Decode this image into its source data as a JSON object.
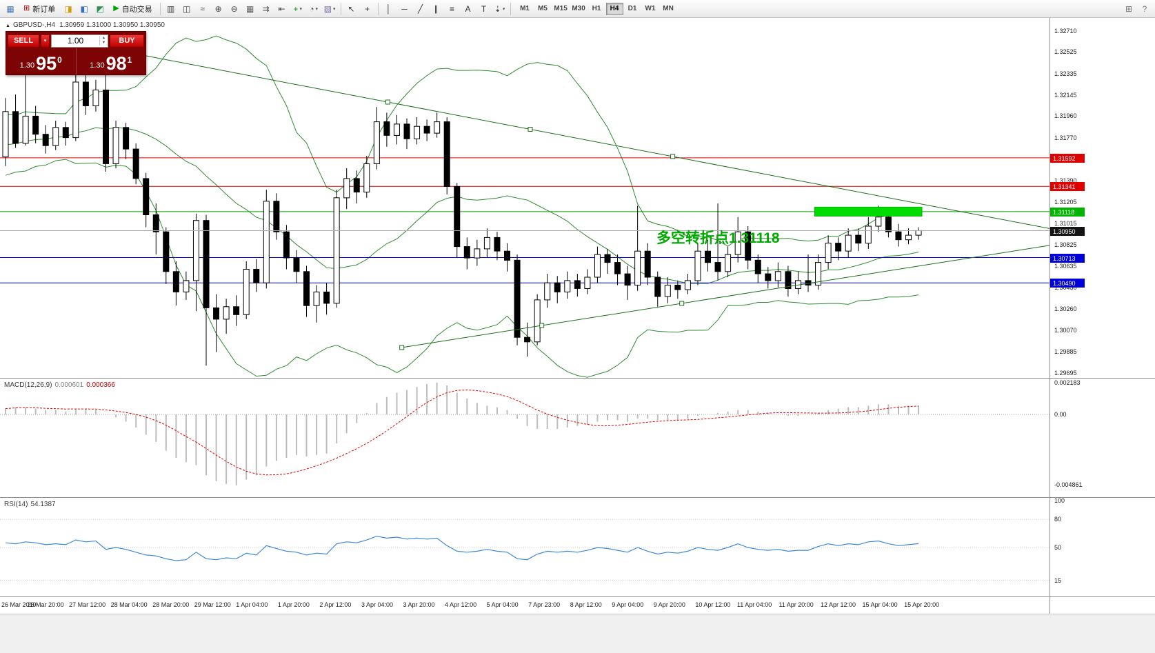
{
  "toolbar": {
    "left": [
      {
        "type": "icon",
        "name": "new-chart-icon",
        "glyph": "▦",
        "color": "#4a7ab5"
      },
      {
        "type": "button",
        "name": "new-order-button",
        "glyph": "⊞",
        "color": "#c00000",
        "label": "新订单"
      },
      {
        "type": "icon",
        "name": "profiles-icon",
        "glyph": "◨",
        "color": "#d89a00"
      },
      {
        "type": "icon",
        "name": "market-watch-icon",
        "glyph": "◧",
        "color": "#3c6ebf"
      },
      {
        "type": "icon",
        "name": "navigator-icon",
        "glyph": "◩",
        "color": "#2f8f4e"
      },
      {
        "type": "button",
        "name": "autotrading-button",
        "glyph": "▶",
        "color": "#00a000",
        "label": "自动交易"
      },
      {
        "type": "sep"
      },
      {
        "type": "icon",
        "name": "bar-chart-icon",
        "glyph": "▥",
        "color": "#444444"
      },
      {
        "type": "icon",
        "name": "candlestick-chart-icon",
        "glyph": "◫",
        "color": "#444444"
      },
      {
        "type": "icon",
        "name": "line-chart-icon",
        "glyph": "≈",
        "color": "#444444"
      },
      {
        "type": "icon",
        "name": "zoom-in-icon",
        "glyph": "⊕",
        "color": "#444444"
      },
      {
        "type": "icon",
        "name": "zoom-out-icon",
        "glyph": "⊖",
        "color": "#444444"
      },
      {
        "type": "icon",
        "name": "tile-windows-icon",
        "glyph": "▦",
        "color": "#666666"
      },
      {
        "type": "icon",
        "name": "auto-scroll-icon",
        "glyph": "⇉",
        "color": "#444444"
      },
      {
        "type": "icon",
        "name": "chart-shift-icon",
        "glyph": "⇤",
        "color": "#444444"
      },
      {
        "type": "icon",
        "name": "indicators-icon",
        "glyph": "+",
        "color": "#00a000",
        "dropdown": true
      },
      {
        "type": "icon",
        "name": "periods-icon",
        "glyph": "◔",
        "color": "#444444",
        "dropdown": true
      },
      {
        "type": "icon",
        "name": "templates-icon",
        "glyph": "▨",
        "color": "#7a6aa0",
        "dropdown": true
      },
      {
        "type": "sep"
      },
      {
        "type": "icon",
        "name": "cursor-icon",
        "glyph": "↖",
        "color": "#333333"
      },
      {
        "type": "icon",
        "name": "crosshair-icon",
        "glyph": "+",
        "color": "#333333"
      },
      {
        "type": "sep"
      },
      {
        "type": "icon",
        "name": "vertical-line-icon",
        "glyph": "│",
        "color": "#333333"
      },
      {
        "type": "icon",
        "name": "horizontal-line-icon",
        "glyph": "─",
        "color": "#333333"
      },
      {
        "type": "icon",
        "name": "trendline-icon",
        "glyph": "╱",
        "color": "#333333"
      },
      {
        "type": "icon",
        "name": "equidistant-channel-icon",
        "glyph": "∥",
        "color": "#333333"
      },
      {
        "type": "icon",
        "name": "fibonacci-icon",
        "glyph": "≡",
        "color": "#333333"
      },
      {
        "type": "icon",
        "name": "text-icon",
        "glyph": "A",
        "color": "#333333"
      },
      {
        "type": "icon",
        "name": "text-label-icon",
        "glyph": "T",
        "color": "#333333"
      },
      {
        "type": "icon",
        "name": "arrows-icon",
        "glyph": "⇣",
        "color": "#333333",
        "dropdown": true
      },
      {
        "type": "sep"
      }
    ],
    "timeframes": {
      "items": [
        "M1",
        "M5",
        "M15",
        "M30",
        "H1",
        "H4",
        "D1",
        "W1",
        "MN"
      ],
      "active": "H4"
    },
    "right": [
      {
        "type": "icon",
        "name": "new-window-icon",
        "glyph": "⊞",
        "color": "#777777"
      },
      {
        "type": "icon",
        "name": "help-icon",
        "glyph": "?",
        "color": "#777777"
      }
    ]
  },
  "chart": {
    "symbol_period": "GBPUSD-,H4",
    "ohlc_text": "1.30959 1.31000 1.30950 1.30950"
  },
  "one_click": {
    "sell_label": "SELL",
    "buy_label": "BUY",
    "volume": "1.00",
    "sell_price_prefix": "1.30",
    "sell_price_big": "95",
    "sell_price_sup": "0",
    "buy_price_prefix": "1.30",
    "buy_price_big": "98",
    "buy_price_sup": "1"
  },
  "annotation": {
    "text": "多空转折点1.31118",
    "color": "#00AA00"
  },
  "price_axis": {
    "ticks": [
      "1.32710",
      "1.32525",
      "1.32335",
      "1.32145",
      "1.31960",
      "1.31770",
      "1.31580",
      "1.31390",
      "1.31205",
      "1.31015",
      "1.30825",
      "1.30635",
      "1.30450",
      "1.30260",
      "1.30070",
      "1.29885",
      "1.29695"
    ],
    "badges": [
      {
        "text": "1.31592",
        "color": "#e00000"
      },
      {
        "text": "1.31341",
        "color": "#e00000"
      },
      {
        "text": "1.31118",
        "color": "#00b400"
      },
      {
        "text": "1.30950",
        "color": "#141414"
      },
      {
        "text": "1.30713",
        "color": "#0000d8"
      },
      {
        "text": "1.30490",
        "color": "#0000d8"
      }
    ]
  },
  "macd": {
    "label": "MACD(12,26,9)",
    "main_value": "0.000601",
    "signal_value": "0.000366",
    "axis": [
      {
        "text": "0.002183",
        "value": 0.002183
      },
      {
        "text": "0.00",
        "value": 0
      },
      {
        "text": "-0.004861",
        "value": -0.004861
      }
    ]
  },
  "rsi": {
    "label": "RSI(14)",
    "value": "54.1387",
    "axis": [
      {
        "text": "100",
        "value": 100
      },
      {
        "text": "80",
        "value": 80
      },
      {
        "text": "50",
        "value": 50
      },
      {
        "text": "15",
        "value": 15
      }
    ]
  },
  "date_axis": {
    "labels": [
      "26 Mar 2019",
      "26 Mar 20:00",
      "27 Mar 12:00",
      "28 Mar 04:00",
      "28 Mar 20:00",
      "29 Mar 12:00",
      "1 Apr 04:00",
      "1 Apr 20:00",
      "2 Apr 12:00",
      "3 Apr 04:00",
      "3 Apr 20:00",
      "4 Apr 12:00",
      "5 Apr 04:00",
      "7 Apr 23:00",
      "8 Apr 12:00",
      "9 Apr 04:00",
      "9 Apr 20:00",
      "10 Apr 12:00",
      "11 Apr 04:00",
      "11 Apr 20:00",
      "12 Apr 12:00",
      "15 Apr 04:00",
      "15 Apr 20:00"
    ]
  },
  "chart_data": {
    "type": "candlestick",
    "symbol": "GBPUSD-",
    "timeframe": "H4",
    "price_axis_range": {
      "top": 1.3271,
      "bottom": 1.29695
    },
    "bollinger": {
      "period": 20,
      "deviation": 2
    },
    "ohlc": [
      [
        1.316,
        1.3212,
        1.3152,
        1.32
      ],
      [
        1.32,
        1.3215,
        1.3168,
        1.3172
      ],
      [
        1.3172,
        1.3232,
        1.317,
        1.3196
      ],
      [
        1.3196,
        1.3205,
        1.3172,
        1.318
      ],
      [
        1.318,
        1.3188,
        1.3163,
        1.317
      ],
      [
        1.317,
        1.3192,
        1.3166,
        1.3186
      ],
      [
        1.3186,
        1.3191,
        1.317,
        1.3177
      ],
      [
        1.3177,
        1.3235,
        1.3174,
        1.3226
      ],
      [
        1.3226,
        1.3232,
        1.3197,
        1.3205
      ],
      [
        1.3205,
        1.3228,
        1.32,
        1.3219
      ],
      [
        1.3219,
        1.324,
        1.3147,
        1.3154
      ],
      [
        1.3154,
        1.3192,
        1.315,
        1.3186
      ],
      [
        1.3186,
        1.319,
        1.3158,
        1.3167
      ],
      [
        1.3167,
        1.3172,
        1.3136,
        1.3141
      ],
      [
        1.3141,
        1.3146,
        1.3098,
        1.3109
      ],
      [
        1.3109,
        1.3119,
        1.3074,
        1.3094
      ],
      [
        1.3094,
        1.3098,
        1.3048,
        1.3059
      ],
      [
        1.3059,
        1.3068,
        1.3029,
        1.3041
      ],
      [
        1.3041,
        1.3059,
        1.3034,
        1.3051
      ],
      [
        1.3051,
        1.311,
        1.3024,
        1.3104
      ],
      [
        1.3104,
        1.3109,
        1.2976,
        1.3027
      ],
      [
        1.3027,
        1.3039,
        1.2988,
        1.3017
      ],
      [
        1.3017,
        1.3035,
        1.3004,
        1.3028
      ],
      [
        1.3028,
        1.3038,
        1.3011,
        1.3021
      ],
      [
        1.3021,
        1.3068,
        1.3017,
        1.3061
      ],
      [
        1.3061,
        1.307,
        1.3041,
        1.3049
      ],
      [
        1.3049,
        1.3131,
        1.3044,
        1.3121
      ],
      [
        1.3121,
        1.3128,
        1.3087,
        1.3094
      ],
      [
        1.3094,
        1.31,
        1.3061,
        1.3071
      ],
      [
        1.3071,
        1.3078,
        1.3049,
        1.3059
      ],
      [
        1.3059,
        1.3064,
        1.3019,
        1.3029
      ],
      [
        1.3029,
        1.3047,
        1.3014,
        1.3041
      ],
      [
        1.3041,
        1.3049,
        1.3021,
        1.3031
      ],
      [
        1.3031,
        1.3131,
        1.3027,
        1.3124
      ],
      [
        1.3124,
        1.315,
        1.3114,
        1.3141
      ],
      [
        1.3141,
        1.3148,
        1.3119,
        1.3129
      ],
      [
        1.3129,
        1.3161,
        1.3124,
        1.3154
      ],
      [
        1.3154,
        1.3204,
        1.3149,
        1.3191
      ],
      [
        1.3191,
        1.3199,
        1.3169,
        1.3179
      ],
      [
        1.3179,
        1.3197,
        1.3171,
        1.3189
      ],
      [
        1.3189,
        1.3194,
        1.3167,
        1.3176
      ],
      [
        1.3176,
        1.3195,
        1.3171,
        1.3187
      ],
      [
        1.3187,
        1.3193,
        1.3174,
        1.3181
      ],
      [
        1.3181,
        1.3199,
        1.3177,
        1.3191
      ],
      [
        1.3191,
        1.3195,
        1.3127,
        1.3134
      ],
      [
        1.3134,
        1.3137,
        1.3071,
        1.3081
      ],
      [
        1.3081,
        1.3089,
        1.3061,
        1.3071
      ],
      [
        1.3071,
        1.3087,
        1.3064,
        1.3079
      ],
      [
        1.3079,
        1.3097,
        1.3071,
        1.3089
      ],
      [
        1.3089,
        1.3094,
        1.3069,
        1.3077
      ],
      [
        1.3077,
        1.3084,
        1.3059,
        1.3069
      ],
      [
        1.3069,
        1.3074,
        1.2994,
        1.3001
      ],
      [
        1.3001,
        1.3014,
        1.2984,
        1.2997
      ],
      [
        1.2997,
        1.3039,
        1.2994,
        1.3034
      ],
      [
        1.3034,
        1.3057,
        1.3027,
        1.3049
      ],
      [
        1.3049,
        1.3055,
        1.3031,
        1.3041
      ],
      [
        1.3041,
        1.3059,
        1.3035,
        1.3051
      ],
      [
        1.3051,
        1.3057,
        1.3037,
        1.3044
      ],
      [
        1.3044,
        1.3061,
        1.3039,
        1.3054
      ],
      [
        1.3054,
        1.3081,
        1.3049,
        1.3074
      ],
      [
        1.3074,
        1.3079,
        1.3057,
        1.3067
      ],
      [
        1.3067,
        1.3074,
        1.3047,
        1.3057
      ],
      [
        1.3057,
        1.3064,
        1.3034,
        1.3047
      ],
      [
        1.3047,
        1.3117,
        1.3042,
        1.3077
      ],
      [
        1.3077,
        1.3084,
        1.3047,
        1.3054
      ],
      [
        1.3054,
        1.3059,
        1.3028,
        1.3037
      ],
      [
        1.3037,
        1.3054,
        1.3031,
        1.3047
      ],
      [
        1.3047,
        1.3051,
        1.3035,
        1.3043
      ],
      [
        1.3043,
        1.3057,
        1.3039,
        1.3051
      ],
      [
        1.3051,
        1.3084,
        1.3047,
        1.3077
      ],
      [
        1.3077,
        1.3087,
        1.3059,
        1.3067
      ],
      [
        1.3067,
        1.3119,
        1.3051,
        1.3059
      ],
      [
        1.3059,
        1.3081,
        1.3054,
        1.3074
      ],
      [
        1.3074,
        1.3107,
        1.3067,
        1.3094
      ],
      [
        1.3094,
        1.3099,
        1.3061,
        1.3069
      ],
      [
        1.3069,
        1.3074,
        1.3049,
        1.3057
      ],
      [
        1.3057,
        1.3063,
        1.3044,
        1.3051
      ],
      [
        1.3051,
        1.3067,
        1.3045,
        1.3059
      ],
      [
        1.3059,
        1.3064,
        1.3037,
        1.3044
      ],
      [
        1.3044,
        1.3059,
        1.3039,
        1.3051
      ],
      [
        1.3051,
        1.3074,
        1.3041,
        1.3047
      ],
      [
        1.3047,
        1.3074,
        1.3043,
        1.3067
      ],
      [
        1.3067,
        1.3091,
        1.3061,
        1.3084
      ],
      [
        1.3084,
        1.3089,
        1.3069,
        1.3077
      ],
      [
        1.3077,
        1.3097,
        1.3071,
        1.3091
      ],
      [
        1.3091,
        1.3097,
        1.3077,
        1.3084
      ],
      [
        1.3084,
        1.3107,
        1.3079,
        1.3099
      ],
      [
        1.3099,
        1.3117,
        1.3094,
        1.3107
      ],
      [
        1.3107,
        1.3114,
        1.3089,
        1.3094
      ],
      [
        1.3094,
        1.3101,
        1.3081,
        1.3087
      ],
      [
        1.3087,
        1.3097,
        1.3083,
        1.3091
      ],
      [
        1.3091,
        1.3098,
        1.3087,
        1.3095
      ]
    ],
    "levels": [
      {
        "price": 1.31592,
        "color": "#e00000"
      },
      {
        "price": 1.31341,
        "color": "#e00000"
      },
      {
        "price": 1.31118,
        "color": "#00a000"
      },
      {
        "price": 1.30713,
        "color": "#0000d8"
      },
      {
        "price": 1.3049,
        "color": "#0000d8"
      }
    ],
    "current_price": {
      "price": 1.3095,
      "color": "#ababab"
    },
    "objects": {
      "trendlines": [
        {
          "anchors": [
            [
              38.1,
              1.32084
            ],
            [
              66.5,
              1.31604
            ]
          ],
          "start_bar": 4.3,
          "ray": true,
          "color": "#1B6E1B"
        },
        {
          "anchors": [
            [
              39.5,
              1.2992
            ],
            [
              67.4,
              1.30309
            ]
          ],
          "ray": true,
          "color": "#1B6E1B"
        }
      ],
      "highlight_box": {
        "bar1": 81,
        "bar2": 91,
        "price": 1.31118,
        "color": "#00DC00"
      }
    },
    "macd": {
      "histogram": [
        0.0004,
        0.0005,
        0.0005,
        0.0004,
        0.0003,
        0.0003,
        0.0002,
        0.0004,
        0.0004,
        0.0003,
        0.0,
        -0.0002,
        -0.0005,
        -0.0009,
        -0.0014,
        -0.0019,
        -0.0025,
        -0.003,
        -0.0033,
        -0.0035,
        -0.0042,
        -0.0046,
        -0.0048,
        -0.0049,
        -0.0045,
        -0.0042,
        -0.0036,
        -0.0032,
        -0.003,
        -0.0028,
        -0.0029,
        -0.0028,
        -0.0027,
        -0.002,
        -0.0013,
        -0.0006,
        0.0001,
        0.0008,
        0.0012,
        0.0015,
        0.0017,
        0.0019,
        0.0021,
        0.0022,
        0.002,
        0.0015,
        0.0011,
        0.0008,
        0.0006,
        0.0005,
        0.0003,
        -0.0003,
        -0.0008,
        -0.001,
        -0.001,
        -0.001,
        -0.0009,
        -0.0008,
        -0.0007,
        -0.0005,
        -0.0004,
        -0.0004,
        -0.0005,
        -0.0003,
        -0.0003,
        -0.0004,
        -0.0004,
        -0.0004,
        -0.0003,
        -0.0001,
        0.0,
        0.0001,
        0.0002,
        0.0003,
        0.0003,
        0.0002,
        0.0001,
        0.0,
        -0.0001,
        -0.0001,
        0.0,
        0.0001,
        0.0003,
        0.0004,
        0.0005,
        0.0005,
        0.0006,
        0.0007,
        0.0007,
        0.0006,
        0.0006,
        0.0006
      ]
    },
    "rsi": {
      "values": [
        55,
        54,
        56,
        55,
        53,
        54,
        53,
        58,
        56,
        57,
        48,
        50,
        48,
        45,
        42,
        41,
        38,
        36,
        37,
        45,
        38,
        37,
        39,
        38,
        44,
        42,
        52,
        49,
        46,
        45,
        42,
        44,
        43,
        54,
        56,
        55,
        58,
        62,
        60,
        61,
        59,
        60,
        59,
        60,
        52,
        46,
        45,
        46,
        48,
        46,
        45,
        38,
        37,
        43,
        46,
        45,
        46,
        45,
        47,
        50,
        49,
        47,
        45,
        50,
        46,
        43,
        45,
        44,
        46,
        50,
        48,
        47,
        50,
        54,
        50,
        48,
        47,
        48,
        46,
        47,
        47,
        51,
        54,
        52,
        54,
        53,
        56,
        57,
        54,
        52,
        53,
        54.14
      ]
    },
    "styles": {
      "band_color": "#2E8B2E",
      "wick": "#000000",
      "up_fill": "#ffffff",
      "down_fill": "#000000",
      "macd_hist": "#bdbdbd",
      "macd_signal": "#e00000",
      "rsi_line": "#3E86D6"
    }
  }
}
